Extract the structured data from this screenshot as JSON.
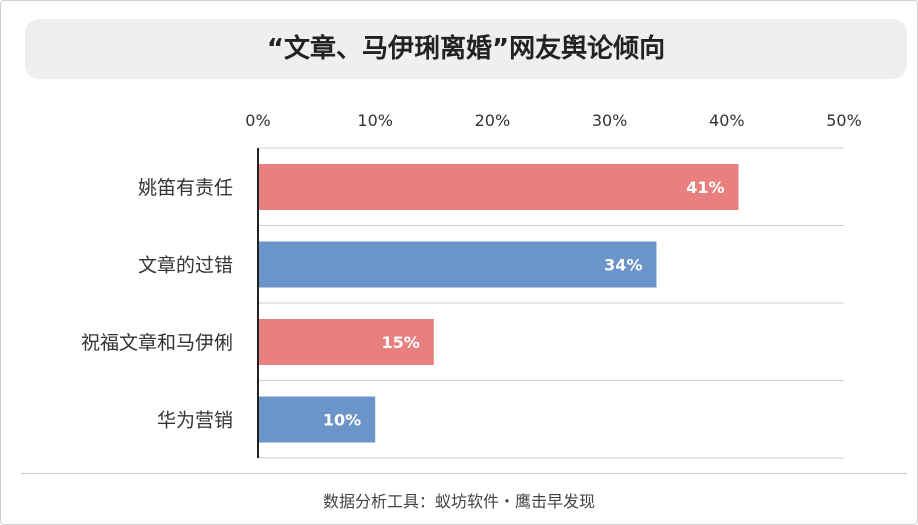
{
  "chart_data": {
    "type": "bar",
    "orientation": "horizontal",
    "title": "“文章、马伊琍离婚”网友舆论倾向",
    "categories": [
      "姚笛有责任",
      "文章的过错",
      "祝福文章和马伊俐",
      "华为营销"
    ],
    "values": [
      41,
      34,
      15,
      10
    ],
    "value_labels": [
      "41%",
      "34%",
      "15%",
      "10%"
    ],
    "bar_colors": [
      "#e98080",
      "#6b95c8",
      "#e98080",
      "#6b95c8"
    ],
    "xlim": [
      0,
      50
    ],
    "x_ticks": [
      0,
      10,
      20,
      30,
      40,
      50
    ],
    "x_tick_labels": [
      "0%",
      "10%",
      "20%",
      "30%",
      "40%",
      "50%"
    ],
    "x_axis_position": "top",
    "grid": "horizontal separators",
    "legend": "none"
  },
  "footer": {
    "source": "数据分析工具：蚁坊软件・鹰击早发现"
  }
}
